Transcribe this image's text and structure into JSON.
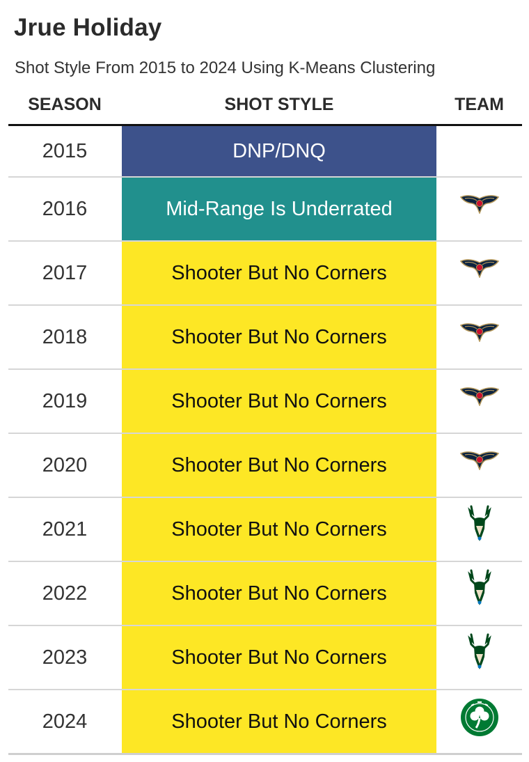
{
  "title": "Jrue Holiday",
  "subtitle": "Shot Style From 2015 to 2024 Using K-Means Clustering",
  "columns": {
    "season": "SEASON",
    "style": "SHOT STYLE",
    "team": "TEAM"
  },
  "styles": {
    "DNP/DNQ": {
      "bg": "#3d528b",
      "fg": "#ffffff"
    },
    "Mid-Range Is Underrated": {
      "bg": "#21908d",
      "fg": "#ffffff"
    },
    "Shooter But No Corners": {
      "bg": "#fde725",
      "fg": "#111111"
    }
  },
  "chart_data": {
    "type": "table",
    "title": "Jrue Holiday",
    "subtitle": "Shot Style From 2015 to 2024 Using K-Means Clustering",
    "rows": [
      {
        "season": "2015",
        "style": "DNP/DNQ",
        "team_icon": ""
      },
      {
        "season": "2016",
        "style": "Mid-Range Is Underrated",
        "team_icon": "pelicans-logo-icon"
      },
      {
        "season": "2017",
        "style": "Shooter But No Corners",
        "team_icon": "pelicans-logo-icon"
      },
      {
        "season": "2018",
        "style": "Shooter But No Corners",
        "team_icon": "pelicans-logo-icon"
      },
      {
        "season": "2019",
        "style": "Shooter But No Corners",
        "team_icon": "pelicans-logo-icon"
      },
      {
        "season": "2020",
        "style": "Shooter But No Corners",
        "team_icon": "pelicans-logo-icon"
      },
      {
        "season": "2021",
        "style": "Shooter But No Corners",
        "team_icon": "bucks-logo-icon"
      },
      {
        "season": "2022",
        "style": "Shooter But No Corners",
        "team_icon": "bucks-logo-icon"
      },
      {
        "season": "2023",
        "style": "Shooter But No Corners",
        "team_icon": "bucks-logo-icon"
      },
      {
        "season": "2024",
        "style": "Shooter But No Corners",
        "team_icon": "celtics-logo-icon"
      }
    ]
  }
}
